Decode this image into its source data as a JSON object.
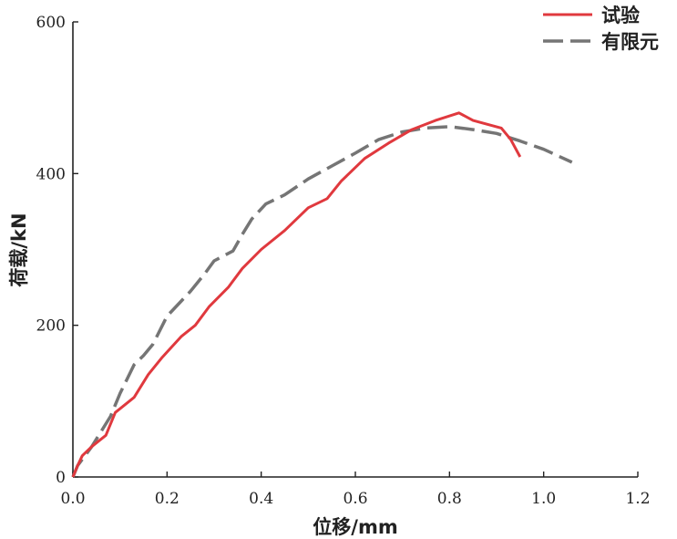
{
  "chart_data": {
    "type": "line",
    "xlabel": "位移/mm",
    "ylabel": "荷载/kN",
    "xlim": [
      0.0,
      1.2
    ],
    "ylim": [
      0,
      600
    ],
    "x_ticks": [
      "0.0",
      "0.2",
      "0.4",
      "0.6",
      "0.8",
      "1.0",
      "1.2"
    ],
    "y_ticks": [
      "0",
      "200",
      "400",
      "600"
    ],
    "grid": false,
    "legend_position": "top-right",
    "series": [
      {
        "name": "试验",
        "color": "#e0393e",
        "style": "solid",
        "points": [
          [
            0.0,
            0
          ],
          [
            0.01,
            15
          ],
          [
            0.02,
            28
          ],
          [
            0.04,
            40
          ],
          [
            0.07,
            55
          ],
          [
            0.09,
            85
          ],
          [
            0.13,
            105
          ],
          [
            0.16,
            135
          ],
          [
            0.19,
            158
          ],
          [
            0.23,
            185
          ],
          [
            0.26,
            200
          ],
          [
            0.29,
            225
          ],
          [
            0.33,
            250
          ],
          [
            0.36,
            275
          ],
          [
            0.4,
            300
          ],
          [
            0.45,
            325
          ],
          [
            0.5,
            355
          ],
          [
            0.54,
            367
          ],
          [
            0.57,
            390
          ],
          [
            0.62,
            420
          ],
          [
            0.67,
            440
          ],
          [
            0.72,
            458
          ],
          [
            0.77,
            470
          ],
          [
            0.82,
            480
          ],
          [
            0.85,
            470
          ],
          [
            0.91,
            460
          ],
          [
            0.93,
            445
          ],
          [
            0.95,
            422
          ]
        ]
      },
      {
        "name": "有限元",
        "color": "#757575",
        "style": "dashed",
        "points": [
          [
            0.0,
            0
          ],
          [
            0.01,
            15
          ],
          [
            0.04,
            40
          ],
          [
            0.08,
            80
          ],
          [
            0.1,
            110
          ],
          [
            0.13,
            148
          ],
          [
            0.15,
            160
          ],
          [
            0.17,
            175
          ],
          [
            0.2,
            212
          ],
          [
            0.25,
            245
          ],
          [
            0.28,
            268
          ],
          [
            0.3,
            285
          ],
          [
            0.34,
            298
          ],
          [
            0.36,
            320
          ],
          [
            0.38,
            340
          ],
          [
            0.41,
            360
          ],
          [
            0.45,
            372
          ],
          [
            0.5,
            393
          ],
          [
            0.55,
            410
          ],
          [
            0.6,
            427
          ],
          [
            0.65,
            445
          ],
          [
            0.7,
            455
          ],
          [
            0.75,
            460
          ],
          [
            0.8,
            462
          ],
          [
            0.85,
            458
          ],
          [
            0.9,
            453
          ],
          [
            0.95,
            443
          ],
          [
            1.0,
            432
          ],
          [
            1.06,
            415
          ]
        ]
      }
    ]
  }
}
